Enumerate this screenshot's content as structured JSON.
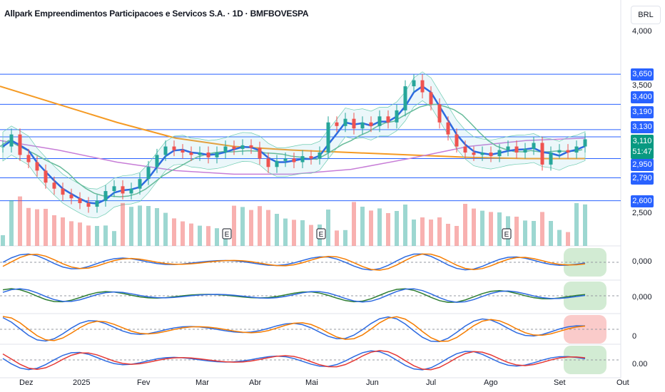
{
  "header": {
    "title": "Allpark Empreendimentos Participacoes e Servicos S.A. · 1D · BMFBOVESPA",
    "currency": "BRL"
  },
  "chart_data": {
    "type": "candlestick",
    "title": "Allpark Empreendimentos Participacoes e Servicos S.A. · 1D · BMFBOVESPA",
    "ylim": [
      2.45,
      4.05
    ],
    "y_ticks": [
      "4,000",
      "3,500",
      "2,500"
    ],
    "x_ticks": [
      "Dez",
      "2025",
      "Fev",
      "Mar",
      "Abr",
      "Mai",
      "Jun",
      "Jul",
      "Ago",
      "Set",
      "Out"
    ],
    "closes": [
      3.05,
      3.15,
      2.98,
      2.92,
      2.85,
      2.75,
      2.7,
      2.65,
      2.62,
      2.58,
      2.55,
      2.6,
      2.68,
      2.72,
      2.66,
      2.7,
      2.78,
      2.88,
      2.98,
      3.05,
      3.02,
      3.0,
      2.98,
      3.0,
      2.96,
      3.0,
      3.05,
      3.03,
      3.06,
      3.04,
      2.95,
      2.88,
      2.93,
      2.95,
      2.92,
      2.97,
      2.95,
      3.0,
      3.25,
      3.22,
      3.28,
      3.2,
      3.25,
      3.22,
      3.3,
      3.25,
      3.35,
      3.55,
      3.6,
      3.5,
      3.4,
      3.25,
      3.15,
      3.05,
      3.0,
      2.98,
      3.0,
      2.97,
      3.02,
      3.05,
      3.0,
      3.03,
      3.08,
      2.9,
      3.0,
      3.02,
      3.0,
      3.05,
      3.11
    ],
    "ma_long": [
      3.55,
      3.4,
      3.25,
      3.12,
      3.05,
      3.02,
      3.0,
      2.98,
      2.96,
      2.95,
      2.95
    ],
    "ma_mid": [
      3.1,
      3.02,
      2.92,
      2.85,
      2.82,
      2.82,
      2.86,
      2.95,
      3.05,
      3.1,
      3.12
    ],
    "levels": [
      {
        "price": 3.65,
        "label": "3,650"
      },
      {
        "price": 3.4,
        "label": "3,400"
      },
      {
        "price": 3.19,
        "label": "3,190"
      },
      {
        "price": 3.13,
        "label": "3,130"
      },
      {
        "price": 2.95,
        "label": "2,950"
      },
      {
        "price": 2.79,
        "label": "2,790"
      },
      {
        "price": 2.6,
        "label": "2,600"
      }
    ],
    "last_price": "3,110",
    "countdown": "51:47",
    "earnings_marker": "E",
    "indicator_labels": [
      "0,000",
      "0,000",
      "0",
      "0.00"
    ]
  }
}
